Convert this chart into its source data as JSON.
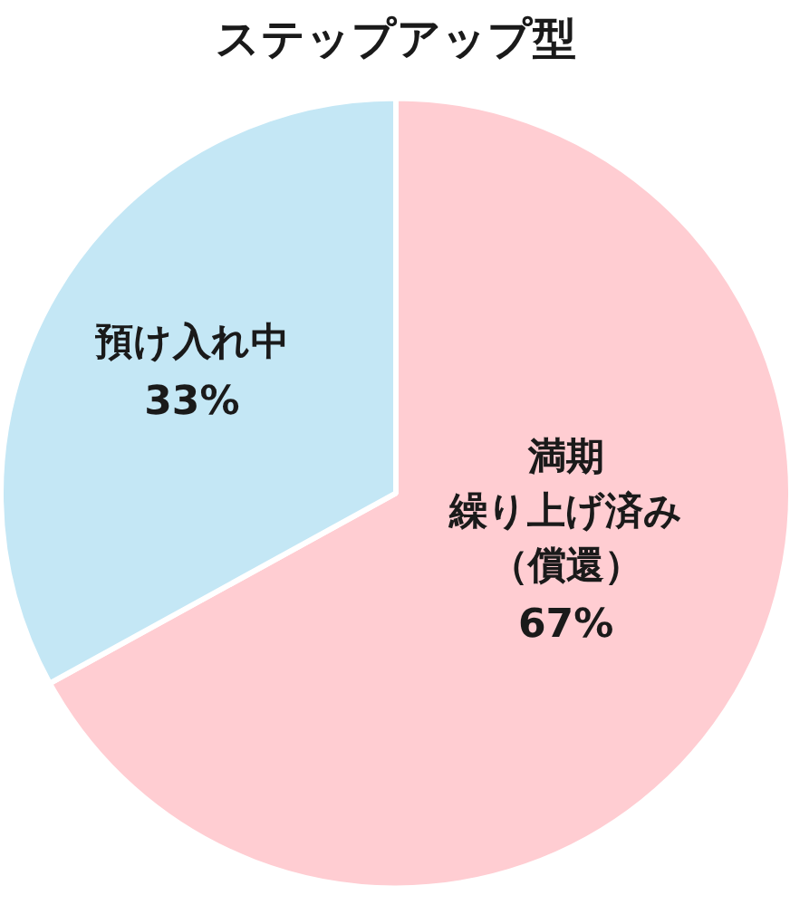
{
  "chart_data": {
    "type": "pie",
    "title": "ステップアップ型",
    "categories": [
      "満期繰り上げ済み（償還）",
      "預け入れ中"
    ],
    "values": [
      67,
      33
    ],
    "colors": [
      "#ffcdd2",
      "#c4e7f5"
    ],
    "value_labels": [
      "67%",
      "33%"
    ]
  }
}
